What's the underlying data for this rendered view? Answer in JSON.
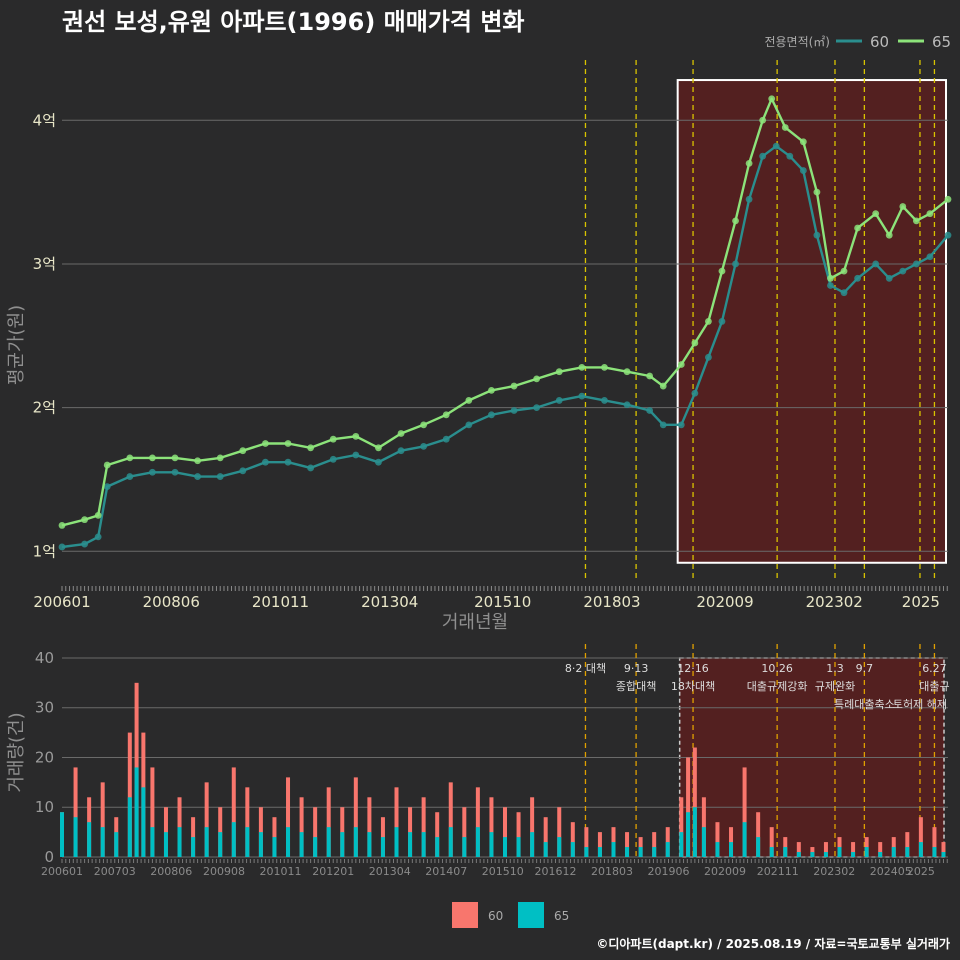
{
  "title": "권선 보성,유원 아파트(1996) 매매가격 변화",
  "caption": "©디아파트(dapt.kr) / 2025.08.19 / 자료=국토교통부 실거래가",
  "colors": {
    "s60": "#2a8e8e",
    "s65": "#8ce37a",
    "bar60": "#f8766d",
    "bar65": "#00bfc4",
    "event": "#d9c400",
    "highlight": "#5a1f1f"
  },
  "chart_data": [
    {
      "type": "line",
      "name": "price",
      "xlabel": "거래년월",
      "ylabel": "평균가(원)",
      "x_ticks": [
        "200601",
        "200806",
        "201011",
        "201304",
        "201510",
        "201803",
        "202009",
        "202302",
        "2025"
      ],
      "y_ticks": [
        {
          "value": 1,
          "label": "1억"
        },
        {
          "value": 2,
          "label": "2억"
        },
        {
          "value": 3,
          "label": "3억"
        },
        {
          "value": 4,
          "label": "4억"
        }
      ],
      "ylim": [
        0.8,
        4.35
      ],
      "x_range": [
        2006.0,
        2025.6
      ],
      "legend": {
        "title": "전용면적(㎡)",
        "position": "top-right",
        "items": [
          "60",
          "65"
        ]
      },
      "event_lines": [
        2017.58,
        2018.7,
        2019.96,
        2021.82,
        2023.1,
        2023.75,
        2024.98,
        2025.3
      ],
      "highlight": {
        "x": [
          2019.62,
          2025.6
        ],
        "y": [
          0.92,
          4.28
        ]
      },
      "series": [
        {
          "name": "60",
          "points": [
            [
              2006.0,
              1.03
            ],
            [
              2006.5,
              1.05
            ],
            [
              2006.8,
              1.1
            ],
            [
              2007.0,
              1.45
            ],
            [
              2007.5,
              1.52
            ],
            [
              2008.0,
              1.55
            ],
            [
              2008.5,
              1.55
            ],
            [
              2009.0,
              1.52
            ],
            [
              2009.5,
              1.52
            ],
            [
              2010.0,
              1.56
            ],
            [
              2010.5,
              1.62
            ],
            [
              2011.0,
              1.62
            ],
            [
              2011.5,
              1.58
            ],
            [
              2012.0,
              1.64
            ],
            [
              2012.5,
              1.67
            ],
            [
              2013.0,
              1.62
            ],
            [
              2013.5,
              1.7
            ],
            [
              2014.0,
              1.73
            ],
            [
              2014.5,
              1.78
            ],
            [
              2015.0,
              1.88
            ],
            [
              2015.5,
              1.95
            ],
            [
              2016.0,
              1.98
            ],
            [
              2016.5,
              2.0
            ],
            [
              2017.0,
              2.05
            ],
            [
              2017.5,
              2.08
            ],
            [
              2018.0,
              2.05
            ],
            [
              2018.5,
              2.02
            ],
            [
              2019.0,
              1.98
            ],
            [
              2019.3,
              1.88
            ],
            [
              2019.7,
              1.88
            ],
            [
              2020.0,
              2.1
            ],
            [
              2020.3,
              2.35
            ],
            [
              2020.6,
              2.6
            ],
            [
              2020.9,
              3.0
            ],
            [
              2021.2,
              3.45
            ],
            [
              2021.5,
              3.75
            ],
            [
              2021.8,
              3.82
            ],
            [
              2022.1,
              3.75
            ],
            [
              2022.4,
              3.65
            ],
            [
              2022.7,
              3.2
            ],
            [
              2023.0,
              2.85
            ],
            [
              2023.3,
              2.8
            ],
            [
              2023.6,
              2.9
            ],
            [
              2024.0,
              3.0
            ],
            [
              2024.3,
              2.9
            ],
            [
              2024.6,
              2.95
            ],
            [
              2024.9,
              3.0
            ],
            [
              2025.2,
              3.05
            ],
            [
              2025.6,
              3.2
            ]
          ]
        },
        {
          "name": "65",
          "points": [
            [
              2006.0,
              1.18
            ],
            [
              2006.5,
              1.22
            ],
            [
              2006.8,
              1.25
            ],
            [
              2007.0,
              1.6
            ],
            [
              2007.5,
              1.65
            ],
            [
              2008.0,
              1.65
            ],
            [
              2008.5,
              1.65
            ],
            [
              2009.0,
              1.63
            ],
            [
              2009.5,
              1.65
            ],
            [
              2010.0,
              1.7
            ],
            [
              2010.5,
              1.75
            ],
            [
              2011.0,
              1.75
            ],
            [
              2011.5,
              1.72
            ],
            [
              2012.0,
              1.78
            ],
            [
              2012.5,
              1.8
            ],
            [
              2013.0,
              1.72
            ],
            [
              2013.5,
              1.82
            ],
            [
              2014.0,
              1.88
            ],
            [
              2014.5,
              1.95
            ],
            [
              2015.0,
              2.05
            ],
            [
              2015.5,
              2.12
            ],
            [
              2016.0,
              2.15
            ],
            [
              2016.5,
              2.2
            ],
            [
              2017.0,
              2.25
            ],
            [
              2017.5,
              2.28
            ],
            [
              2018.0,
              2.28
            ],
            [
              2018.5,
              2.25
            ],
            [
              2019.0,
              2.22
            ],
            [
              2019.3,
              2.15
            ],
            [
              2019.7,
              2.3
            ],
            [
              2020.0,
              2.45
            ],
            [
              2020.3,
              2.6
            ],
            [
              2020.6,
              2.95
            ],
            [
              2020.9,
              3.3
            ],
            [
              2021.2,
              3.7
            ],
            [
              2021.5,
              4.0
            ],
            [
              2021.7,
              4.15
            ],
            [
              2022.0,
              3.95
            ],
            [
              2022.4,
              3.85
            ],
            [
              2022.7,
              3.5
            ],
            [
              2023.0,
              2.9
            ],
            [
              2023.3,
              2.95
            ],
            [
              2023.6,
              3.25
            ],
            [
              2024.0,
              3.35
            ],
            [
              2024.3,
              3.2
            ],
            [
              2024.6,
              3.4
            ],
            [
              2024.9,
              3.3
            ],
            [
              2025.2,
              3.35
            ],
            [
              2025.6,
              3.45
            ]
          ]
        }
      ]
    },
    {
      "type": "bar",
      "name": "volume",
      "ylabel": "거래량(건)",
      "x_ticks": [
        "200601",
        "200703",
        "200806",
        "200908",
        "201011",
        "201201",
        "201304",
        "201407",
        "201510",
        "201612",
        "201803",
        "201906",
        "202009",
        "202111",
        "202302",
        "202405",
        "2025"
      ],
      "y_ticks": [
        0,
        10,
        20,
        30,
        40
      ],
      "ylim": [
        0,
        42
      ],
      "stacked": true,
      "legend": {
        "position": "bottom",
        "items": [
          "60",
          "65"
        ]
      },
      "events": [
        {
          "x": 2017.58,
          "label1": "8·2 대책",
          "label2": ""
        },
        {
          "x": 2018.7,
          "label1": "9·13",
          "label2": "종합대책"
        },
        {
          "x": 2019.96,
          "label1": "12·16",
          "label2": "18차대책"
        },
        {
          "x": 2021.82,
          "label1": "10.26",
          "label2": "대출규제강화"
        },
        {
          "x": 2023.1,
          "label1": "1.3",
          "label2": "규제완화"
        },
        {
          "x": 2023.75,
          "label1": "9.7",
          "label2": "특례대출축소"
        },
        {
          "x": 2024.98,
          "label1": "",
          "label2": "토허제 해제"
        },
        {
          "x": 2025.3,
          "label1": "6.27",
          "label2": "대출규"
        }
      ],
      "highlight": {
        "x": [
          2019.62,
          2025.6
        ]
      },
      "bars": [
        [
          2006.0,
          9,
          9
        ],
        [
          2006.3,
          18,
          8
        ],
        [
          2006.6,
          12,
          7
        ],
        [
          2006.9,
          15,
          6
        ],
        [
          2007.2,
          8,
          5
        ],
        [
          2007.5,
          25,
          12
        ],
        [
          2007.65,
          35,
          18
        ],
        [
          2007.8,
          25,
          14
        ],
        [
          2008.0,
          18,
          6
        ],
        [
          2008.3,
          10,
          5
        ],
        [
          2008.6,
          12,
          6
        ],
        [
          2008.9,
          8,
          4
        ],
        [
          2009.2,
          15,
          6
        ],
        [
          2009.5,
          10,
          5
        ],
        [
          2009.8,
          18,
          7
        ],
        [
          2010.1,
          14,
          6
        ],
        [
          2010.4,
          10,
          5
        ],
        [
          2010.7,
          8,
          4
        ],
        [
          2011.0,
          16,
          6
        ],
        [
          2011.3,
          12,
          5
        ],
        [
          2011.6,
          10,
          4
        ],
        [
          2011.9,
          14,
          6
        ],
        [
          2012.2,
          10,
          5
        ],
        [
          2012.5,
          16,
          6
        ],
        [
          2012.8,
          12,
          5
        ],
        [
          2013.1,
          8,
          4
        ],
        [
          2013.4,
          14,
          6
        ],
        [
          2013.7,
          10,
          5
        ],
        [
          2014.0,
          12,
          5
        ],
        [
          2014.3,
          9,
          4
        ],
        [
          2014.6,
          15,
          6
        ],
        [
          2014.9,
          10,
          4
        ],
        [
          2015.2,
          14,
          6
        ],
        [
          2015.5,
          12,
          5
        ],
        [
          2015.8,
          10,
          4
        ],
        [
          2016.1,
          9,
          4
        ],
        [
          2016.4,
          12,
          5
        ],
        [
          2016.7,
          8,
          3
        ],
        [
          2017.0,
          10,
          4
        ],
        [
          2017.3,
          7,
          3
        ],
        [
          2017.6,
          6,
          2
        ],
        [
          2017.9,
          5,
          2
        ],
        [
          2018.2,
          6,
          3
        ],
        [
          2018.5,
          5,
          2
        ],
        [
          2018.8,
          4,
          2
        ],
        [
          2019.1,
          5,
          2
        ],
        [
          2019.4,
          6,
          3
        ],
        [
          2019.7,
          12,
          5
        ],
        [
          2019.85,
          20,
          9
        ],
        [
          2020.0,
          22,
          10
        ],
        [
          2020.2,
          12,
          6
        ],
        [
          2020.5,
          7,
          3
        ],
        [
          2020.8,
          6,
          3
        ],
        [
          2021.1,
          18,
          7
        ],
        [
          2021.4,
          9,
          4
        ],
        [
          2021.7,
          6,
          2
        ],
        [
          2022.0,
          4,
          2
        ],
        [
          2022.3,
          3,
          1
        ],
        [
          2022.6,
          2,
          1
        ],
        [
          2022.9,
          3,
          1
        ],
        [
          2023.2,
          4,
          2
        ],
        [
          2023.5,
          3,
          1
        ],
        [
          2023.8,
          4,
          2
        ],
        [
          2024.1,
          3,
          1
        ],
        [
          2024.4,
          4,
          2
        ],
        [
          2024.7,
          5,
          2
        ],
        [
          2025.0,
          8,
          3
        ],
        [
          2025.3,
          6,
          2
        ],
        [
          2025.5,
          3,
          1
        ]
      ]
    }
  ]
}
